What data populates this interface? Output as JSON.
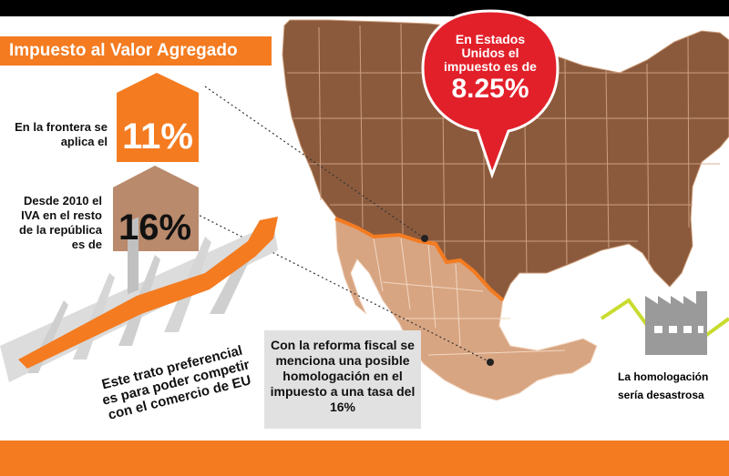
{
  "title": "Impuesto al Valor Agregado",
  "frontera": {
    "label": "En la frontera se aplica el",
    "rate": "11%"
  },
  "resto": {
    "label": "Desde 2010 el IVA en el resto de la república es de",
    "rate": "16%"
  },
  "eu": {
    "line1": "En Estados",
    "line2": "Unidos el",
    "line3": "impuesto es de",
    "rate": "8.25%"
  },
  "trato": "Este trato preferencial es para poder competir con el comercio de EU",
  "reforma": "Con la reforma fiscal se menciona una posible homologación en el impuesto a una tasa del 16%",
  "homologacion": "La homologación sería desastrosa",
  "colors": {
    "orange": "#f47b20",
    "us_brown": "#8b5a3c",
    "mexico_tan": "#d8a582",
    "house_tan": "#b98a6c",
    "bubble_red": "#e2202a"
  },
  "icons": [
    "house-icon",
    "growth-chart-icon",
    "factory-icon",
    "speech-bubble-icon"
  ]
}
